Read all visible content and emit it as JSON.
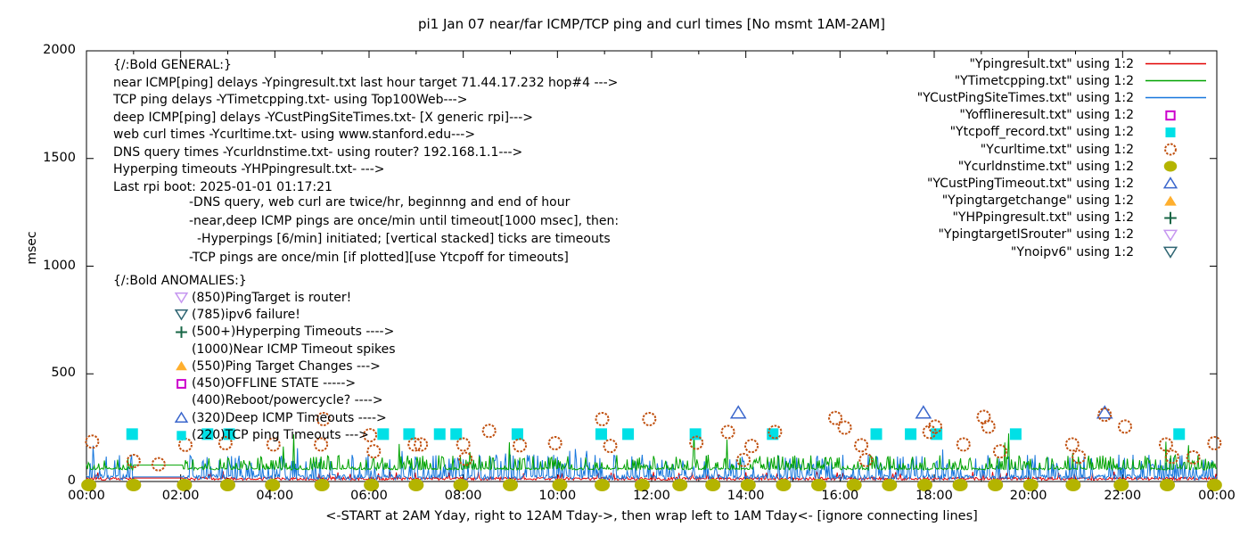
{
  "title": "pi1 Jan 07  near/far ICMP/TCP ping and curl times [No msmt 1AM-2AM]",
  "colors": {
    "red": "#e10000",
    "green": "#00a200",
    "blue": "#1777dd",
    "magenta": "#cc00cc",
    "cyan": "#00e0e6",
    "orange_circle": "#c0500f",
    "olive": "#b4b400",
    "tri_blue": "#3a66cc",
    "tri_orange": "#ffaf2e",
    "plus_green": "#176645",
    "violet": "#c697f0",
    "teal": "#2f6673",
    "axis": "#000000"
  },
  "axes": {
    "ylabel": "msec",
    "yticks": [
      0,
      500,
      1000,
      1500,
      2000
    ],
    "ymax": 2000,
    "xtick_labels": [
      "00:00",
      "02:00",
      "04:00",
      "06:00",
      "08:00",
      "10:00",
      "12:00",
      "14:00",
      "16:00",
      "18:00",
      "20:00",
      "22:00",
      "00:00"
    ],
    "xcaption": "<-START at 2AM Yday, right to 12AM Tday->, then wrap left to 1AM Tday<- [ignore connecting lines]"
  },
  "legend": [
    {
      "label": "\"Ypingresult.txt\" using 1:2",
      "sample": "line",
      "color": "red"
    },
    {
      "label": "\"YTimetcpping.txt\" using 1:2",
      "sample": "line",
      "color": "green"
    },
    {
      "label": "\"YCustPingSiteTimes.txt\" using 1:2",
      "sample": "line",
      "color": "blue"
    },
    {
      "label": "\"Yofflineresult.txt\" using 1:2",
      "sample": "square-open",
      "color": "magenta"
    },
    {
      "label": "\"Ytcpoff_record.txt\" using 1:2",
      "sample": "square-filled",
      "color": "cyan"
    },
    {
      "label": "\"Ycurltime.txt\" using 1:2",
      "sample": "circle-open",
      "color": "orange_circle"
    },
    {
      "label": "\"Ycurldnstime.txt\" using 1:2",
      "sample": "circle-filled",
      "color": "olive"
    },
    {
      "label": "\"YCustPingTimeout.txt\" using 1:2",
      "sample": "triangle-up-open",
      "color": "tri_blue"
    },
    {
      "label": "\"Ypingtargetchange\" using 1:2",
      "sample": "triangle-up-filled",
      "color": "tri_orange"
    },
    {
      "label": "\"YHPpingresult.txt\" using 1:2",
      "sample": "plus",
      "color": "plus_green"
    },
    {
      "label": "\"YpingtargetISrouter\" using 1:2",
      "sample": "triangle-down-open",
      "color": "violet"
    },
    {
      "label": "\"Ynoipv6\" using 1:2",
      "sample": "triangle-down-open",
      "color": "teal"
    }
  ],
  "annotations": {
    "general_header": "{/:Bold GENERAL:}",
    "general_lines": [
      "near ICMP[ping] delays -Ypingresult.txt last hour target 71.44.17.232 hop#4 --->",
      "TCP ping delays -YTimetcpping.txt- using Top100Web--->",
      "deep ICMP[ping] delays -YCustPingSiteTimes.txt- [X generic rpi]--->",
      "web curl times -Ycurltime.txt- using www.stanford.edu--->",
      "DNS query times -Ycurldnstime.txt- using router? 192.168.1.1--->",
      "Hyperping timeouts -YHPpingresult.txt- --->",
      "Last rpi boot: 2025-01-01 01:17:21"
    ],
    "notes": [
      {
        "indent": 0,
        "text": "-DNS query, web curl are twice/hr, beginnng and end of hour"
      },
      {
        "indent": 0,
        "text": "-near,deep ICMP pings are once/min until timeout[1000 msec], then:"
      },
      {
        "indent": 9,
        "text": "-Hyperpings [6/min] initiated; [vertical stacked] ticks are timeouts"
      },
      {
        "indent": 0,
        "text": "-TCP pings are once/min [if plotted][use Ytcpoff for timeouts]"
      }
    ],
    "anomalies_header": "{/:Bold ANOMALIES:}",
    "anomalies": [
      {
        "marker": "triangle-down-open",
        "color": "violet",
        "text": "(850)PingTarget is router!"
      },
      {
        "marker": "triangle-down-open",
        "color": "teal",
        "text": "(785)ipv6 failure!"
      },
      {
        "marker": "plus",
        "color": "plus_green",
        "text": "(500+)Hyperping Timeouts ---->"
      },
      {
        "marker": "none",
        "color": "",
        "text": "(1000)Near ICMP Timeout spikes"
      },
      {
        "marker": "triangle-up-filled",
        "color": "tri_orange",
        "text": "(550)Ping Target Changes --->"
      },
      {
        "marker": "square-open",
        "color": "magenta",
        "text": "(450)OFFLINE STATE ----->"
      },
      {
        "marker": "none",
        "color": "",
        "text": "(400)Reboot/powercycle? ---->"
      },
      {
        "marker": "triangle-up-open",
        "color": "tri_blue",
        "text": "(320)Deep ICMP Timeouts ---->"
      },
      {
        "marker": "square-filled",
        "color": "cyan",
        "text": "(220)TCP ping Timeouts --->"
      }
    ]
  },
  "chart_data": {
    "type": "line",
    "x_unit": "time of day, 00:00 to 24:00 (1-min ping samples)",
    "y_unit": "msec",
    "ylim": [
      0,
      2000
    ],
    "xlim_hours": [
      0,
      24
    ],
    "grid": false,
    "legend_position": "top-right",
    "gap": {
      "start_hour": 1.0,
      "end_hour": 2.05,
      "note": "No msmt 1AM-2AM - flat connecting lines",
      "flat_values": {
        "red": 16,
        "green": 76,
        "blue": 21
      }
    },
    "line_series": [
      {
        "name": "Ypingresult.txt (near ICMP ping delay)",
        "color": "red",
        "baseline_msec": 14,
        "noise_msec": 14,
        "spike_max_msec": 48,
        "spike_rate": 0.05
      },
      {
        "name": "YTimetcpping.txt (TCP ping delay)",
        "color": "green",
        "baseline_msec": 58,
        "noise_msec": 10,
        "spike_max_msec": 240,
        "spike_rate": 0.3
      },
      {
        "name": "YCustPingSiteTimes.txt (deep ICMP ping delay)",
        "color": "blue",
        "baseline_msec": 22,
        "noise_msec": 24,
        "spike_max_msec": 170,
        "spike_rate": 0.3
      }
    ],
    "scatter_series": [
      {
        "name": "Ytcpoff_record.txt (TCP ping timeouts)",
        "marker": "square-filled",
        "color": "cyan",
        "value_msec": 220,
        "hours": [
          0.97,
          2.57,
          3.03,
          6.3,
          6.85,
          7.5,
          7.85,
          9.15,
          10.93,
          11.5,
          12.93,
          14.57,
          16.77,
          17.5,
          18.05,
          19.73,
          23.2
        ]
      },
      {
        "name": "YCustPingTimeout.txt (deep ICMP timeouts)",
        "marker": "triangle-up-open",
        "color": "tri_blue",
        "value_msec": 320,
        "hours": [
          13.84,
          17.77,
          21.62
        ]
      },
      {
        "name": "Ycurltime.txt (web curl times)",
        "marker": "circle-open",
        "color": "orange_circle",
        "points": [
          [
            0.12,
            185
          ],
          [
            1.0,
            95
          ],
          [
            1.53,
            80
          ],
          [
            2.1,
            170
          ],
          [
            2.95,
            178
          ],
          [
            3.97,
            172
          ],
          [
            4.98,
            172
          ],
          [
            5.03,
            290
          ],
          [
            6.02,
            215
          ],
          [
            6.1,
            140
          ],
          [
            6.97,
            172
          ],
          [
            7.1,
            172
          ],
          [
            8.0,
            172
          ],
          [
            8.05,
            105
          ],
          [
            8.55,
            235
          ],
          [
            9.2,
            168
          ],
          [
            9.95,
            178
          ],
          [
            10.95,
            290
          ],
          [
            11.12,
            165
          ],
          [
            11.95,
            290
          ],
          [
            12.95,
            180
          ],
          [
            13.62,
            230
          ],
          [
            13.95,
            100
          ],
          [
            14.12,
            165
          ],
          [
            14.62,
            230
          ],
          [
            15.9,
            295
          ],
          [
            16.1,
            250
          ],
          [
            16.45,
            168
          ],
          [
            16.55,
            100
          ],
          [
            17.9,
            230
          ],
          [
            18.02,
            255
          ],
          [
            18.62,
            172
          ],
          [
            19.05,
            300
          ],
          [
            19.15,
            255
          ],
          [
            19.4,
            140
          ],
          [
            20.93,
            172
          ],
          [
            21.07,
            115
          ],
          [
            22.05,
            255
          ],
          [
            21.62,
            310
          ],
          [
            22.92,
            172
          ],
          [
            23.05,
            115
          ],
          [
            23.5,
            112
          ],
          [
            23.95,
            178
          ]
        ]
      },
      {
        "name": "Ycurldnstime.txt (DNS query times)",
        "marker": "circle-filled",
        "color": "olive",
        "value_msec": 0,
        "hours": [
          0.05,
          1.0,
          2.08,
          3.0,
          3.95,
          5.0,
          6.05,
          7.0,
          7.95,
          9.0,
          10.05,
          10.95,
          11.8,
          12.6,
          13.3,
          14.05,
          14.8,
          15.55,
          16.3,
          17.05,
          17.8,
          18.55,
          19.3,
          20.05,
          20.95,
          21.97,
          22.95,
          23.95
        ]
      }
    ]
  }
}
